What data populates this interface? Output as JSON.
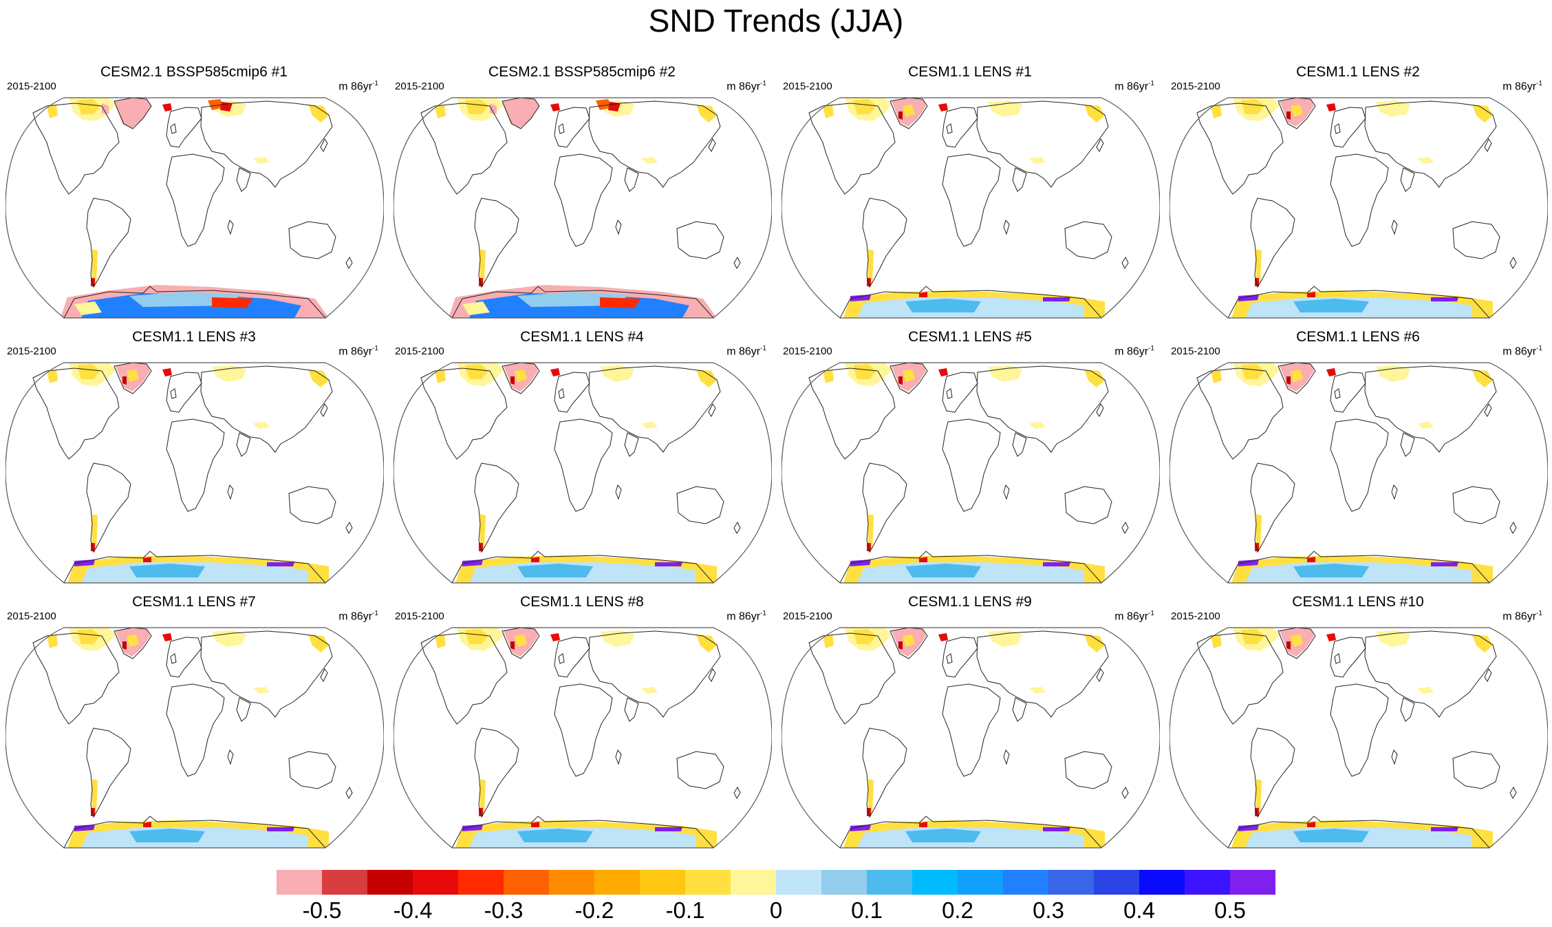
{
  "title": "SND Trends (JJA)",
  "panel_period": "2015-2100",
  "panel_units": {
    "base": "m 86yr",
    "exponent": "-1"
  },
  "panels": [
    {
      "title": "CESM2.1 BSSP585cmip6 #1",
      "scheme": "cesm2"
    },
    {
      "title": "CESM2.1 BSSP585cmip6 #2",
      "scheme": "cesm2"
    },
    {
      "title": "CESM1.1 LENS #1",
      "scheme": "lens"
    },
    {
      "title": "CESM1.1 LENS #2",
      "scheme": "lens"
    },
    {
      "title": "CESM1.1 LENS #3",
      "scheme": "lens"
    },
    {
      "title": "CESM1.1 LENS #4",
      "scheme": "lens"
    },
    {
      "title": "CESM1.1 LENS #5",
      "scheme": "lens"
    },
    {
      "title": "CESM1.1 LENS #6",
      "scheme": "lens"
    },
    {
      "title": "CESM1.1 LENS #7",
      "scheme": "lens"
    },
    {
      "title": "CESM1.1 LENS #8",
      "scheme": "lens"
    },
    {
      "title": "CESM1.1 LENS #9",
      "scheme": "lens"
    },
    {
      "title": "CESM1.1 LENS #10",
      "scheme": "lens"
    }
  ],
  "colorbar": {
    "colors": [
      "#f8aeb2",
      "#d93d40",
      "#c40000",
      "#e80a0a",
      "#ff2a00",
      "#ff6000",
      "#ff8c00",
      "#ffaa00",
      "#ffc612",
      "#ffe040",
      "#fff599",
      "#bfe3f7",
      "#93cdee",
      "#4dbbee",
      "#00bbff",
      "#11a0ff",
      "#2080ff",
      "#3a66e8",
      "#2a44e6",
      "#0a0aff",
      "#3d14ff",
      "#8020ee"
    ],
    "ticks": [
      -0.5,
      -0.4,
      -0.3,
      -0.2,
      -0.1,
      0,
      0.1,
      0.2,
      0.3,
      0.4,
      0.5
    ],
    "tick_labels": [
      "-0.5",
      "-0.4",
      "-0.3",
      "-0.2",
      "-0.1",
      "0",
      "0.1",
      "0.2",
      "0.3",
      "0.4",
      "0.5"
    ]
  }
}
